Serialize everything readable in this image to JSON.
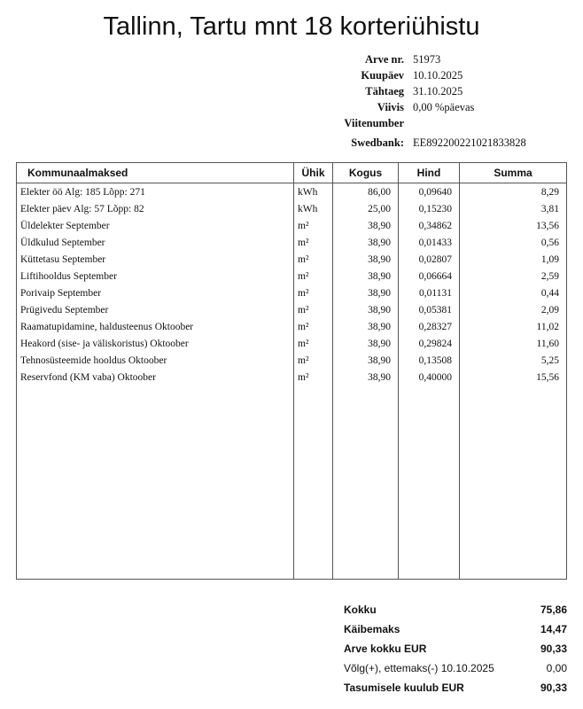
{
  "title": "Tallinn, Tartu mnt 18 korteriühistu",
  "meta": [
    {
      "label": "Arve nr.",
      "value": "51973"
    },
    {
      "label": "Kuupäev",
      "value": "10.10.2025"
    },
    {
      "label": "Tähtaeg",
      "value": "31.10.2025"
    },
    {
      "label": "Viivis",
      "value": "0,00 %päevas"
    },
    {
      "label": "Viitenumber",
      "value": ""
    },
    {
      "label": "Swedbank:",
      "value": "EE892200221021833828"
    }
  ],
  "table": {
    "headers": [
      "Kommunaalmaksed",
      "Ühik",
      "Kogus",
      "Hind",
      "Summa"
    ],
    "rows": [
      [
        "Elekter öö Alg: 185 Lõpp: 271",
        "kWh",
        "86,00",
        "0,09640",
        "8,29"
      ],
      [
        "Elekter päev Alg: 57 Lõpp: 82",
        "kWh",
        "25,00",
        "0,15230",
        "3,81"
      ],
      [
        "Üldelekter September",
        "m²",
        "38,90",
        "0,34862",
        "13,56"
      ],
      [
        "Üldkulud September",
        "m²",
        "38,90",
        "0,01433",
        "0,56"
      ],
      [
        "Küttetasu September",
        "m²",
        "38,90",
        "0,02807",
        "1,09"
      ],
      [
        "Liftihooldus September",
        "m²",
        "38,90",
        "0,06664",
        "2,59"
      ],
      [
        "Porivaip September",
        "m²",
        "38,90",
        "0,01131",
        "0,44"
      ],
      [
        "Prügivedu September",
        "m²",
        "38,90",
        "0,05381",
        "2,09"
      ],
      [
        "Raamatupidamine, haldusteenus Oktoober",
        "m²",
        "38,90",
        "0,28327",
        "11,02"
      ],
      [
        "Heakord (sise- ja väliskoristus) Oktoober",
        "m²",
        "38,90",
        "0,29824",
        "11,60"
      ],
      [
        "Tehnosüsteemide hooldus Oktoober",
        "m²",
        "38,90",
        "0,13508",
        "5,25"
      ],
      [
        "Reservfond (KM vaba) Oktoober",
        "m²",
        "38,90",
        "0,40000",
        "15,56"
      ]
    ]
  },
  "totals": [
    {
      "label": "Kokku",
      "value": "75,86",
      "bold": true
    },
    {
      "label": "Käibemaks",
      "value": "14,47",
      "bold": true
    },
    {
      "label": "Arve kokku EUR",
      "value": "90,33",
      "bold": true
    },
    {
      "label": "Võlg(+), ettemaks(-) 10.10.2025",
      "value": "0,00",
      "bold": false
    },
    {
      "label": "Tasumisele kuulub EUR",
      "value": "90,33",
      "bold": true
    }
  ]
}
